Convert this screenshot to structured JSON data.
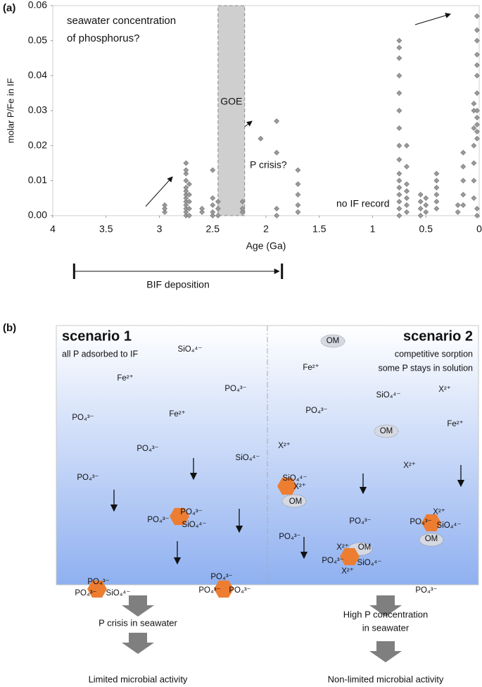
{
  "chart_data": {
    "type": "scatter",
    "label": "(a)",
    "xlabel": "Age (Ga)",
    "ylabel": "molar P/Fe in IF",
    "xlim": [
      4,
      0
    ],
    "xticks": [
      4,
      3.5,
      3,
      2.5,
      2,
      1.5,
      1,
      0.5,
      0
    ],
    "ylim": [
      0,
      0.06
    ],
    "yticks": [
      {
        "value": 0,
        "label": "0.00"
      },
      {
        "value": 0.01,
        "label": "0.01"
      },
      {
        "value": 0.02,
        "label": "0.02"
      },
      {
        "value": 0.03,
        "label": "0.03"
      },
      {
        "value": 0.04,
        "label": "0.04"
      },
      {
        "value": 0.05,
        "label": "0.05"
      },
      {
        "value": 0.06,
        "label": "0.06"
      }
    ],
    "color": "#9a9a9a",
    "x": [
      2.95,
      2.95,
      2.95,
      2.75,
      2.75,
      2.75,
      2.75,
      2.75,
      2.75,
      2.75,
      2.75,
      2.75,
      2.75,
      2.75,
      2.75,
      2.75,
      2.72,
      2.72,
      2.72,
      2.72,
      2.72,
      2.6,
      2.6,
      2.5,
      2.5,
      2.5,
      2.5,
      2.5,
      2.45,
      2.45,
      2.45,
      2.22,
      2.22,
      2.22,
      2.05,
      1.9,
      1.9,
      1.9,
      1.9,
      1.7,
      1.7,
      1.7,
      1.7,
      1.7,
      0.75,
      0.75,
      0.75,
      0.75,
      0.75,
      0.75,
      0.75,
      0.75,
      0.75,
      0.75,
      0.75,
      0.75,
      0.75,
      0.75,
      0.75,
      0.75,
      0.68,
      0.68,
      0.68,
      0.68,
      0.68,
      0.68,
      0.68,
      0.55,
      0.55,
      0.55,
      0.55,
      0.5,
      0.5,
      0.5,
      0.4,
      0.4,
      0.4,
      0.4,
      0.4,
      0.4,
      0.2,
      0.2,
      0.15,
      0.15,
      0.15,
      0.15,
      0.15,
      0.05,
      0.05,
      0.05,
      0.05,
      0.05,
      0.05,
      0.05,
      0.02,
      0.02,
      0.02,
      0.02,
      0.02,
      0.02,
      0.02,
      0.02,
      0.02,
      0.02,
      0.02,
      0.02,
      0.02,
      0.02
    ],
    "y": [
      0.001,
      0.002,
      0.003,
      0,
      0.001,
      0.002,
      0.003,
      0.004,
      0.005,
      0.006,
      0.007,
      0.008,
      0.01,
      0.012,
      0.013,
      0.015,
      0,
      0.002,
      0.004,
      0.006,
      0.009,
      0.001,
      0.002,
      0,
      0.001,
      0.003,
      0.005,
      0.013,
      0,
      0.002,
      0.004,
      0.001,
      0.002,
      0.004,
      0.022,
      0,
      0.002,
      0.018,
      0.027,
      0.001,
      0.003,
      0.006,
      0.009,
      0.013,
      0,
      0.002,
      0.004,
      0.006,
      0.008,
      0.01,
      0.012,
      0.016,
      0.02,
      0.025,
      0.03,
      0.035,
      0.04,
      0.045,
      0.048,
      0.05,
      0.001,
      0.003,
      0.005,
      0.007,
      0.009,
      0.014,
      0.02,
      0,
      0.002,
      0.004,
      0.006,
      0.001,
      0.003,
      0.005,
      0.002,
      0.004,
      0.006,
      0.008,
      0.01,
      0.012,
      0.001,
      0.003,
      0.003,
      0.006,
      0.01,
      0.014,
      0.018,
      0.005,
      0.01,
      0.015,
      0.02,
      0.025,
      0.03,
      0.032,
      0,
      0.002,
      0.022,
      0.024,
      0.026,
      0.028,
      0.03,
      0.035,
      0.04,
      0.043,
      0.046,
      0.05,
      0.053,
      0.057
    ],
    "regions": [
      {
        "xlim": [
          2.45,
          2.2
        ],
        "label": "GOE"
      }
    ],
    "annotations": [
      "seawater concentration",
      "of phosphorus?",
      "P crisis?",
      "no IF record"
    ],
    "span": {
      "xlim": [
        3.8,
        1.85
      ],
      "label": "BIF deposition"
    }
  },
  "diagram": {
    "label": "(b)",
    "scenarios": [
      {
        "title": "scenario 1",
        "subtitle": [
          "all P adsorbed to IF"
        ],
        "ions": [
          "SiO₄⁴⁻",
          "Fe²⁺",
          "PO₄³⁻",
          "PO₄³⁻",
          "Fe²⁺",
          "PO₄³⁻",
          "SiO₄⁴⁻",
          "PO₄³⁻"
        ],
        "clusters": [
          [
            "PO₄³⁻",
            "PO₄³⁻",
            "SiO₄⁴⁻"
          ],
          [
            "PO₄³⁻",
            "PO₄³⁻",
            "SiO₄⁴⁻"
          ],
          [
            "PO₄³⁻",
            "PO₄³⁻",
            "PO₄³⁻"
          ]
        ],
        "outcomes": [
          [
            "P crisis in seawater"
          ],
          [
            "Limited microbial activity"
          ]
        ]
      },
      {
        "title": "scenario 2",
        "subtitle": [
          "competitive sorption",
          "some P stays in solution"
        ],
        "ions": [
          "OM",
          "Fe²⁺",
          "SiO₄⁴⁻",
          "X²⁺",
          "PO₄³⁻",
          "OM",
          "Fe²⁺",
          "X²⁺",
          "X²⁺",
          "PO₄³⁻",
          "PO₄³⁻",
          "PO₄³⁻"
        ],
        "clusters": [
          [
            "SiO₄⁴⁻",
            "X²⁺",
            "OM"
          ],
          [
            "X²⁺",
            "OM",
            "PO₄³⁻",
            "SiO₄⁴⁻",
            "X²⁺"
          ],
          [
            "X²⁺",
            "PO₄³⁻",
            "SiO₄⁴⁻",
            "OM"
          ]
        ],
        "outcomes": [
          [
            "High P concentration",
            "in seawater"
          ],
          [
            "Non-limited microbial activity"
          ]
        ]
      }
    ]
  }
}
